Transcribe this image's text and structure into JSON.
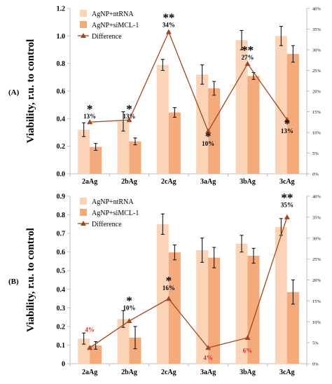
{
  "colors": {
    "ntrna": "#fbd3b7",
    "simcl": "#f5aa7b",
    "difference": "#a0471d",
    "axis": "#bdbdbd",
    "red_label": "#e2261c",
    "text": "#000000"
  },
  "chart_data": [
    {
      "type": "bar",
      "panel_label": "(A)",
      "categories": [
        "2aAg",
        "2bAg",
        "2cAg",
        "3aAg",
        "3bAg",
        "3cAg"
      ],
      "ylabel": "Viability, r.u. to control",
      "ylim": [
        0,
        1.2
      ],
      "yticks": [
        "0.0",
        "0.2",
        "0.4",
        "0.6",
        "0.8",
        "1.0",
        "1.2"
      ],
      "y2lim": [
        0,
        40
      ],
      "y2ticks": [
        "0%",
        "5%",
        "10%",
        "15%",
        "20%",
        "25%",
        "30%",
        "35%",
        "40%"
      ],
      "legend_position": "top-left",
      "series": [
        {
          "name": "AgNP+ntRNA",
          "kind": "bar",
          "color": "ntrna",
          "values": [
            0.32,
            0.38,
            0.79,
            0.72,
            0.97,
            1.0
          ],
          "errors": [
            0.05,
            0.07,
            0.04,
            0.07,
            0.07,
            0.07
          ]
        },
        {
          "name": "AgNP+siMCL-1",
          "kind": "bar",
          "color": "simcl",
          "values": [
            0.195,
            0.235,
            0.445,
            0.62,
            0.71,
            0.87
          ],
          "errors": [
            0.025,
            0.025,
            0.035,
            0.05,
            0.025,
            0.06
          ]
        },
        {
          "name": "Difference",
          "kind": "line",
          "axis": "y2",
          "color": "difference",
          "values": [
            12.5,
            13,
            34.3,
            10.3,
            26.6,
            13.1
          ]
        }
      ],
      "annotations": [
        {
          "category": "2aAg",
          "stars": "*",
          "percent": "13%",
          "red": false,
          "y": 13.4
        },
        {
          "category": "2bAg",
          "stars": "*",
          "percent": "13%",
          "red": false,
          "y": 13.4
        },
        {
          "category": "2cAg",
          "stars": "**",
          "percent": "34%",
          "red": false,
          "y": 35.5
        },
        {
          "category": "3aAg",
          "stars": "*",
          "percent": "10%",
          "red": false,
          "y": 6.8
        },
        {
          "category": "3bAg",
          "stars": "**",
          "percent": "27%",
          "red": false,
          "y": 27.6
        },
        {
          "category": "3cAg",
          "stars": "*",
          "percent": "13%",
          "red": false,
          "y": 9.8
        }
      ]
    },
    {
      "type": "bar",
      "panel_label": "(B)",
      "categories": [
        "2aAg",
        "2bAg",
        "2cAg",
        "3aAg",
        "3bAg",
        "3cAg"
      ],
      "ylabel": "Viability, r.u. to control",
      "ylim": [
        0,
        0.9
      ],
      "yticks": [
        "0",
        "0.1",
        "0.2",
        "0.3",
        "0.4",
        "0.5",
        "0.6",
        "0.7",
        "0.8",
        "0.9"
      ],
      "y2lim": [
        0,
        40
      ],
      "y2ticks": [
        "0%",
        "5%",
        "10%",
        "15%",
        "20%",
        "25%",
        "30%",
        "35%",
        "40%"
      ],
      "legend_position": "top-left",
      "series": [
        {
          "name": "AgNP+ntRNA",
          "kind": "bar",
          "color": "ntrna",
          "values": [
            0.135,
            0.24,
            0.75,
            0.61,
            0.645,
            0.735
          ],
          "errors": [
            0.03,
            0.045,
            0.055,
            0.065,
            0.045,
            0.045
          ]
        },
        {
          "name": "AgNP+siMCL-1",
          "kind": "bar",
          "color": "simcl",
          "values": [
            0.098,
            0.14,
            0.598,
            0.57,
            0.58,
            0.385
          ],
          "errors": [
            0.02,
            0.06,
            0.04,
            0.055,
            0.04,
            0.065
          ]
        },
        {
          "name": "Difference",
          "kind": "line",
          "axis": "y2",
          "color": "difference",
          "values": [
            3.8,
            10.2,
            15.5,
            3.8,
            6.2,
            35
          ]
        }
      ],
      "annotations": [
        {
          "category": "2aAg",
          "stars": "",
          "percent": "4%",
          "red": true,
          "y": 7.6
        },
        {
          "category": "2bAg",
          "stars": "*",
          "percent": "10%",
          "red": false,
          "y": 12.8
        },
        {
          "category": "2cAg",
          "stars": "*",
          "percent": "16%",
          "red": false,
          "y": 17.6
        },
        {
          "category": "3aAg",
          "stars": "",
          "percent": "4%",
          "red": true,
          "y": 0.9
        },
        {
          "category": "3bAg",
          "stars": "",
          "percent": "6%",
          "red": true,
          "y": 2.6
        },
        {
          "category": "3cAg",
          "stars": "**",
          "percent": "35%",
          "red": false,
          "y": 37.4
        }
      ]
    }
  ]
}
